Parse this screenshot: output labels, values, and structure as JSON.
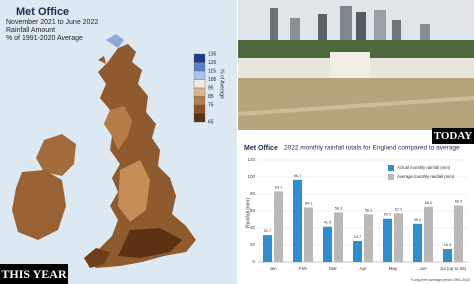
{
  "map_panel": {
    "logo": "Met Office",
    "title": "November 2021 to June 2022",
    "subtitle": "Rainfall Amount",
    "measure": "% of 1991-2020 Average",
    "scale_title": "% of Average",
    "scale_ticks": [
      135,
      125,
      115,
      105,
      95,
      85,
      75,
      65
    ],
    "scale_colors": [
      "#1e3c8c",
      "#5a82c8",
      "#a8c4e6",
      "#f2ece0",
      "#d9b48a",
      "#b57c4a",
      "#8a5228",
      "#5c3214"
    ],
    "badge": "THIS YEAR"
  },
  "photo_badge": "TODAY",
  "chart_data": {
    "type": "bar",
    "logo": "Met Office",
    "title": "2022 monthly rainfall totals for England compared to average",
    "categories": [
      "Jan",
      "Feb",
      "Mar",
      "Apr",
      "May",
      "Jun",
      "Jul (up to 25)"
    ],
    "series": [
      {
        "name": "Actual monthly rainfall (mm)",
        "color": "#2e8fd0",
        "values": [
          31.7,
          96.7,
          41.5,
          24.7,
          50.9,
          45.0,
          15.3
        ],
        "value_labels": [
          "31.7",
          "96.7",
          "41.5",
          "24.7",
          "50.9",
          "45.0",
          "15.3"
        ]
      },
      {
        "name": "Average monthly rainfall (mm)",
        "color": "#b9b9b9",
        "values": [
          83.1,
          64.1,
          58.3,
          56.1,
          57.2,
          65.0,
          66.5
        ],
        "value_labels": [
          "83.1",
          "64.1",
          "58.3",
          "56.1",
          "57.2",
          "65.0",
          "66.5"
        ]
      }
    ],
    "y_label": "Rainfall (mm)",
    "ylim": [
      0,
      120
    ],
    "yticks": [
      0,
      20,
      40,
      60,
      80,
      100,
      120
    ],
    "grid": true,
    "note": "*Long-term average period 1991-2020"
  }
}
